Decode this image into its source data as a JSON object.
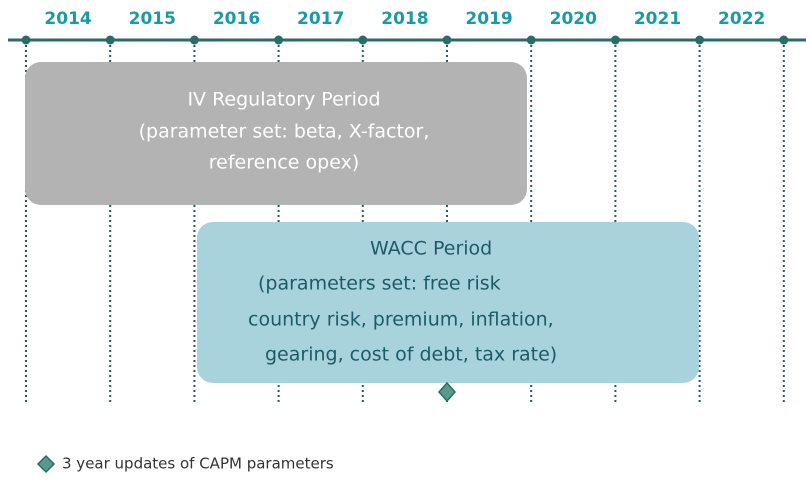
{
  "timeline": {
    "years": [
      "2014",
      "2015",
      "2016",
      "2017",
      "2018",
      "2019",
      "2020",
      "2021",
      "2022"
    ]
  },
  "regulatory_box": {
    "lines": [
      "IV Regulatory Period",
      "(parameter set: beta, X-factor,",
      "reference opex)"
    ]
  },
  "wacc_box": {
    "lines": [
      "WACC Period",
      "(parameters set: free risk",
      "country risk, premium, inflation,",
      "gearing, cost of debt, tax rate)"
    ]
  },
  "legend": {
    "label": "3 year updates of CAPM parameters"
  }
}
